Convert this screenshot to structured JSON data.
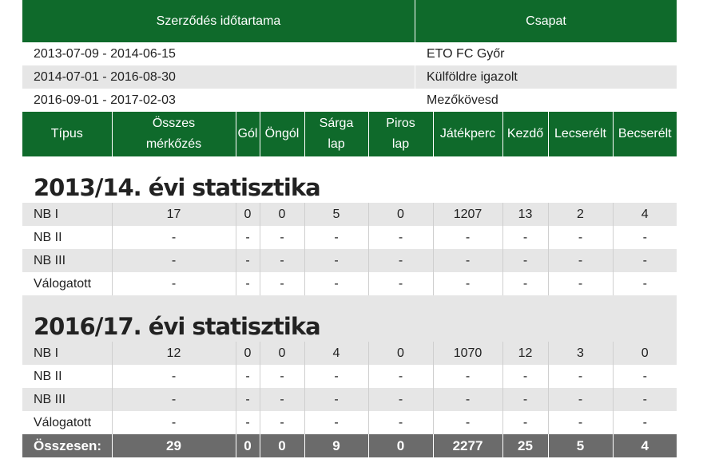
{
  "contract": {
    "headers": {
      "period": "Szerződés időtartama",
      "team": "Csapat"
    },
    "rows": [
      {
        "period": "2013-07-09 - 2014-06-15",
        "team": "ETO FC Győr"
      },
      {
        "period": "2014-07-01 - 2016-08-30",
        "team": "Külföldre igazolt"
      },
      {
        "period": "2016-09-01 - 2017-02-03",
        "team": "Mezőkövesd"
      }
    ]
  },
  "stats": {
    "headers": {
      "type": "Típus",
      "matches_1": "Összes",
      "matches_2": "mérkőzés",
      "goals": "Gól",
      "own_goals": "Öngól",
      "yellow_1": "Sárga",
      "yellow_2": "lap",
      "red_1": "Piros",
      "red_2": "lap",
      "minutes": "Játékperc",
      "starts": "Kezdő",
      "subbed_off": "Lecserélt",
      "subbed_on": "Becserélt"
    },
    "seasons": [
      {
        "title": "2013/14. évi statisztika",
        "rows": [
          {
            "type": "NB I",
            "matches": "17",
            "goals": "0",
            "own_goals": "0",
            "yellow": "5",
            "red": "0",
            "minutes": "1207",
            "starts": "13",
            "subbed_off": "2",
            "subbed_on": "4"
          },
          {
            "type": "NB II",
            "matches": "-",
            "goals": "-",
            "own_goals": "-",
            "yellow": "-",
            "red": "-",
            "minutes": "-",
            "starts": "-",
            "subbed_off": "-",
            "subbed_on": "-"
          },
          {
            "type": "NB III",
            "matches": "-",
            "goals": "-",
            "own_goals": "-",
            "yellow": "-",
            "red": "-",
            "minutes": "-",
            "starts": "-",
            "subbed_off": "-",
            "subbed_on": "-"
          },
          {
            "type": "Válogatott",
            "matches": "-",
            "goals": "-",
            "own_goals": "-",
            "yellow": "-",
            "red": "-",
            "minutes": "-",
            "starts": "-",
            "subbed_off": "-",
            "subbed_on": "-"
          }
        ]
      },
      {
        "title": "2016/17. évi statisztika",
        "rows": [
          {
            "type": "NB I",
            "matches": "12",
            "goals": "0",
            "own_goals": "0",
            "yellow": "4",
            "red": "0",
            "minutes": "1070",
            "starts": "12",
            "subbed_off": "3",
            "subbed_on": "0"
          },
          {
            "type": "NB II",
            "matches": "-",
            "goals": "-",
            "own_goals": "-",
            "yellow": "-",
            "red": "-",
            "minutes": "-",
            "starts": "-",
            "subbed_off": "-",
            "subbed_on": "-"
          },
          {
            "type": "NB III",
            "matches": "-",
            "goals": "-",
            "own_goals": "-",
            "yellow": "-",
            "red": "-",
            "minutes": "-",
            "starts": "-",
            "subbed_off": "-",
            "subbed_on": "-"
          },
          {
            "type": "Válogatott",
            "matches": "-",
            "goals": "-",
            "own_goals": "-",
            "yellow": "-",
            "red": "-",
            "minutes": "-",
            "starts": "-",
            "subbed_off": "-",
            "subbed_on": "-"
          }
        ]
      }
    ],
    "total": {
      "label": "Összesen:",
      "matches": "29",
      "goals": "0",
      "own_goals": "0",
      "yellow": "9",
      "red": "0",
      "minutes": "2277",
      "starts": "25",
      "subbed_off": "5",
      "subbed_on": "4"
    }
  },
  "colors": {
    "header_green": "#0f6a2b",
    "row_gray": "#e6e6e6",
    "total_gray": "#6b6b6b"
  }
}
